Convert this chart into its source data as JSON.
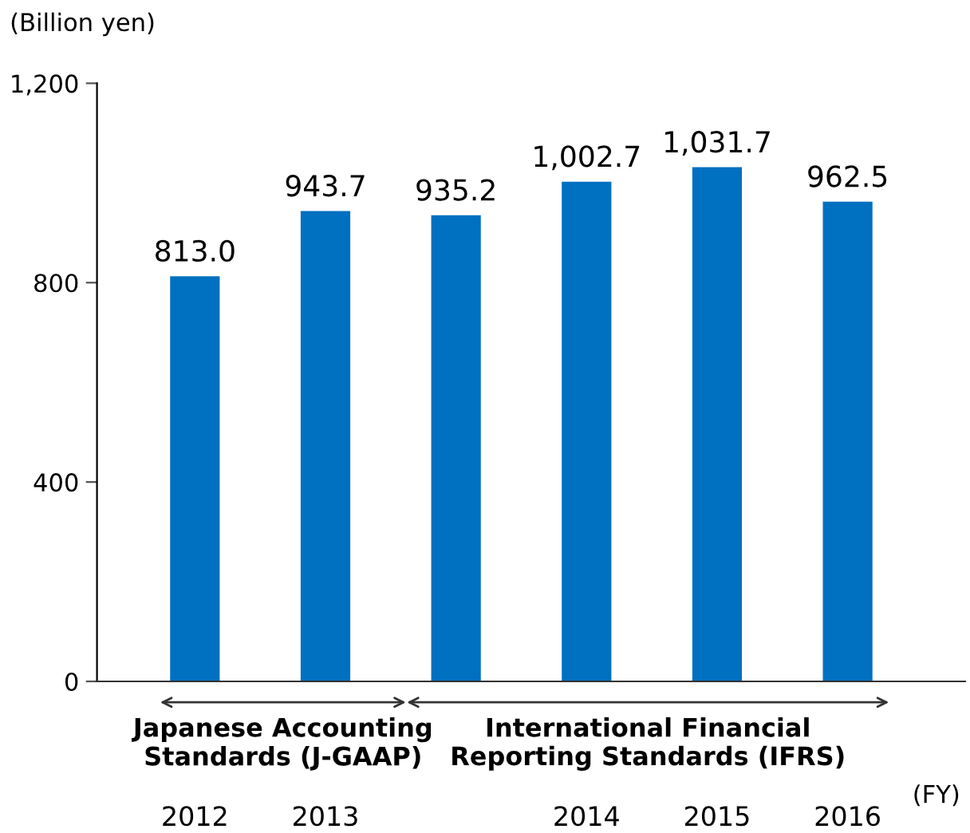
{
  "chart_data": {
    "type": "bar",
    "ylabel": "(Billion yen)",
    "xlabel": "(FY)",
    "categories": [
      "2012",
      "2013",
      null,
      "2014",
      "2015",
      "2016"
    ],
    "values": [
      813.0,
      943.7,
      935.2,
      1002.7,
      1031.7,
      962.5
    ],
    "color": "#0070c0",
    "value_labels": [
      "813.0",
      "943.7",
      "935.2",
      "1,002.7",
      "1,031.7",
      "962.5"
    ],
    "ylim": [
      0,
      1200
    ],
    "yticks": [
      0,
      {
        "value": 400,
        "label": "400"
      },
      {
        "value": 800,
        "label": "800"
      },
      {
        "value": 1200,
        "label": "1,200"
      }
    ],
    "grid": false,
    "legend": false,
    "annotations": [
      "Japanese Accounting\nStandards (J-GAAP)",
      "International Financial\nReporting Standards (IFRS)"
    ]
  }
}
